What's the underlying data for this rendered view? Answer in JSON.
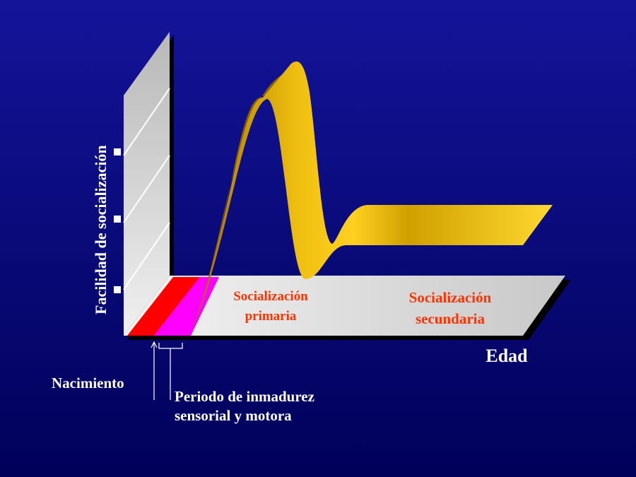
{
  "axes": {
    "y_label": "Facilidad de socialización",
    "x_label": "Edad"
  },
  "regions": [
    {
      "label": [
        "Socialización",
        "primaria"
      ]
    },
    {
      "label": [
        "Socialización",
        "secundaria"
      ]
    }
  ],
  "annotations": [
    {
      "label": [
        "Nacimiento"
      ]
    },
    {
      "label": [
        "Periodo de inmadurez",
        "sensorial y motora"
      ]
    }
  ]
}
